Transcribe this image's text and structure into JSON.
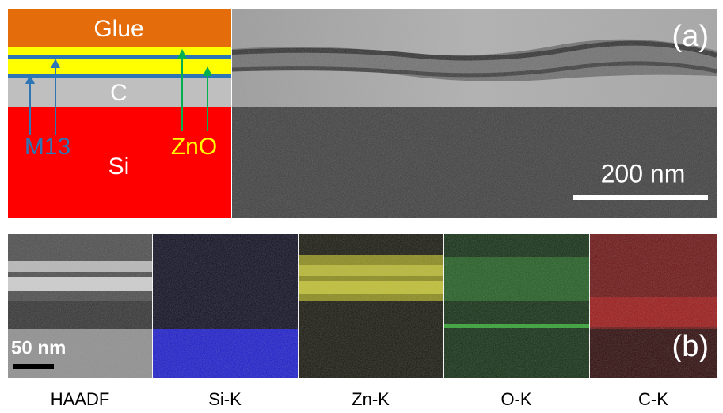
{
  "panel_a": {
    "label": "(a)",
    "layers": [
      "Glue",
      "C",
      "Si"
    ],
    "annotations": [
      "M13",
      "ZnO"
    ],
    "scale_bar": "200 nm"
  },
  "panel_b": {
    "label": "(b)",
    "scale_bar": "50 nm",
    "maps": [
      "HAADF",
      "Si-K",
      "Zn-K",
      "O-K",
      "C-K"
    ]
  }
}
